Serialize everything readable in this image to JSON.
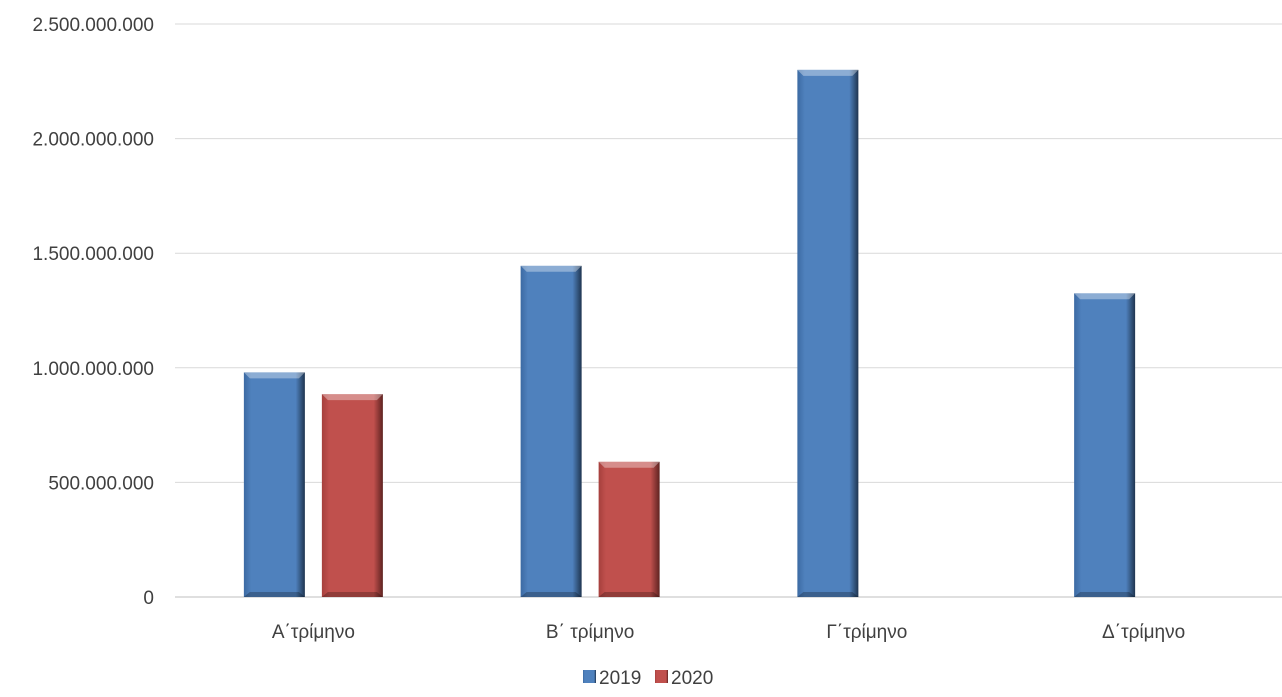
{
  "chart_data": {
    "type": "bar",
    "title": "",
    "xlabel": "",
    "ylabel": "",
    "categories": [
      "Α΄τρίμηνο",
      "Β΄ τρίμηνο",
      "Γ΄τρίμηνο",
      "Δ΄τρίμηνο"
    ],
    "series": [
      {
        "name": "2019",
        "color": "#4F81BD",
        "values": [
          980000000,
          1445000000,
          2300000000,
          1325000000
        ]
      },
      {
        "name": "2020",
        "color": "#C0504D",
        "values": [
          885000000,
          590000000,
          null,
          null
        ]
      }
    ],
    "ylim": [
      0,
      2500000000
    ],
    "yticks": [
      0,
      500000000,
      1000000000,
      1500000000,
      2000000000,
      2500000000
    ],
    "ytick_labels": [
      "0",
      "500.000.000",
      "1.000.000.000",
      "1.500.000.000",
      "2.000.000.000",
      "2.500.000.000"
    ],
    "grid": true,
    "legend_position": "bottom"
  }
}
